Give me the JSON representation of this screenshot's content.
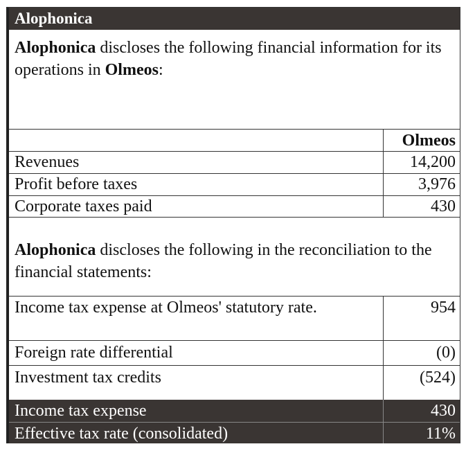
{
  "title": "Alophonica",
  "intro": {
    "company": "Alophonica",
    "text1": " discloses the following financial information for its operations in ",
    "country": "Olmeos",
    "text2": ":"
  },
  "table1": {
    "header": "Olmeos",
    "rows": [
      {
        "label": "Revenues",
        "value": "14,200"
      },
      {
        "label": "Profit before taxes",
        "value": "3,976"
      },
      {
        "label": "Corporate taxes paid",
        "value": "430"
      }
    ]
  },
  "recon": {
    "company": "Alophonica",
    "text": " discloses the following in the reconciliation to the financial statements:"
  },
  "table2": {
    "rows": [
      {
        "label": "Income tax expense at Olmeos' statutory rate.",
        "value": "954"
      },
      {
        "label": "Foreign rate differential",
        "value": "(0)"
      },
      {
        "label": "Investment tax credits",
        "value": "(524)"
      }
    ],
    "totals": [
      {
        "label": "Income tax expense",
        "value": "430"
      },
      {
        "label": "Effective tax rate (consolidated)",
        "value": "11%"
      }
    ]
  },
  "colors": {
    "header_bg": "#3a3533",
    "border": "#333333"
  }
}
